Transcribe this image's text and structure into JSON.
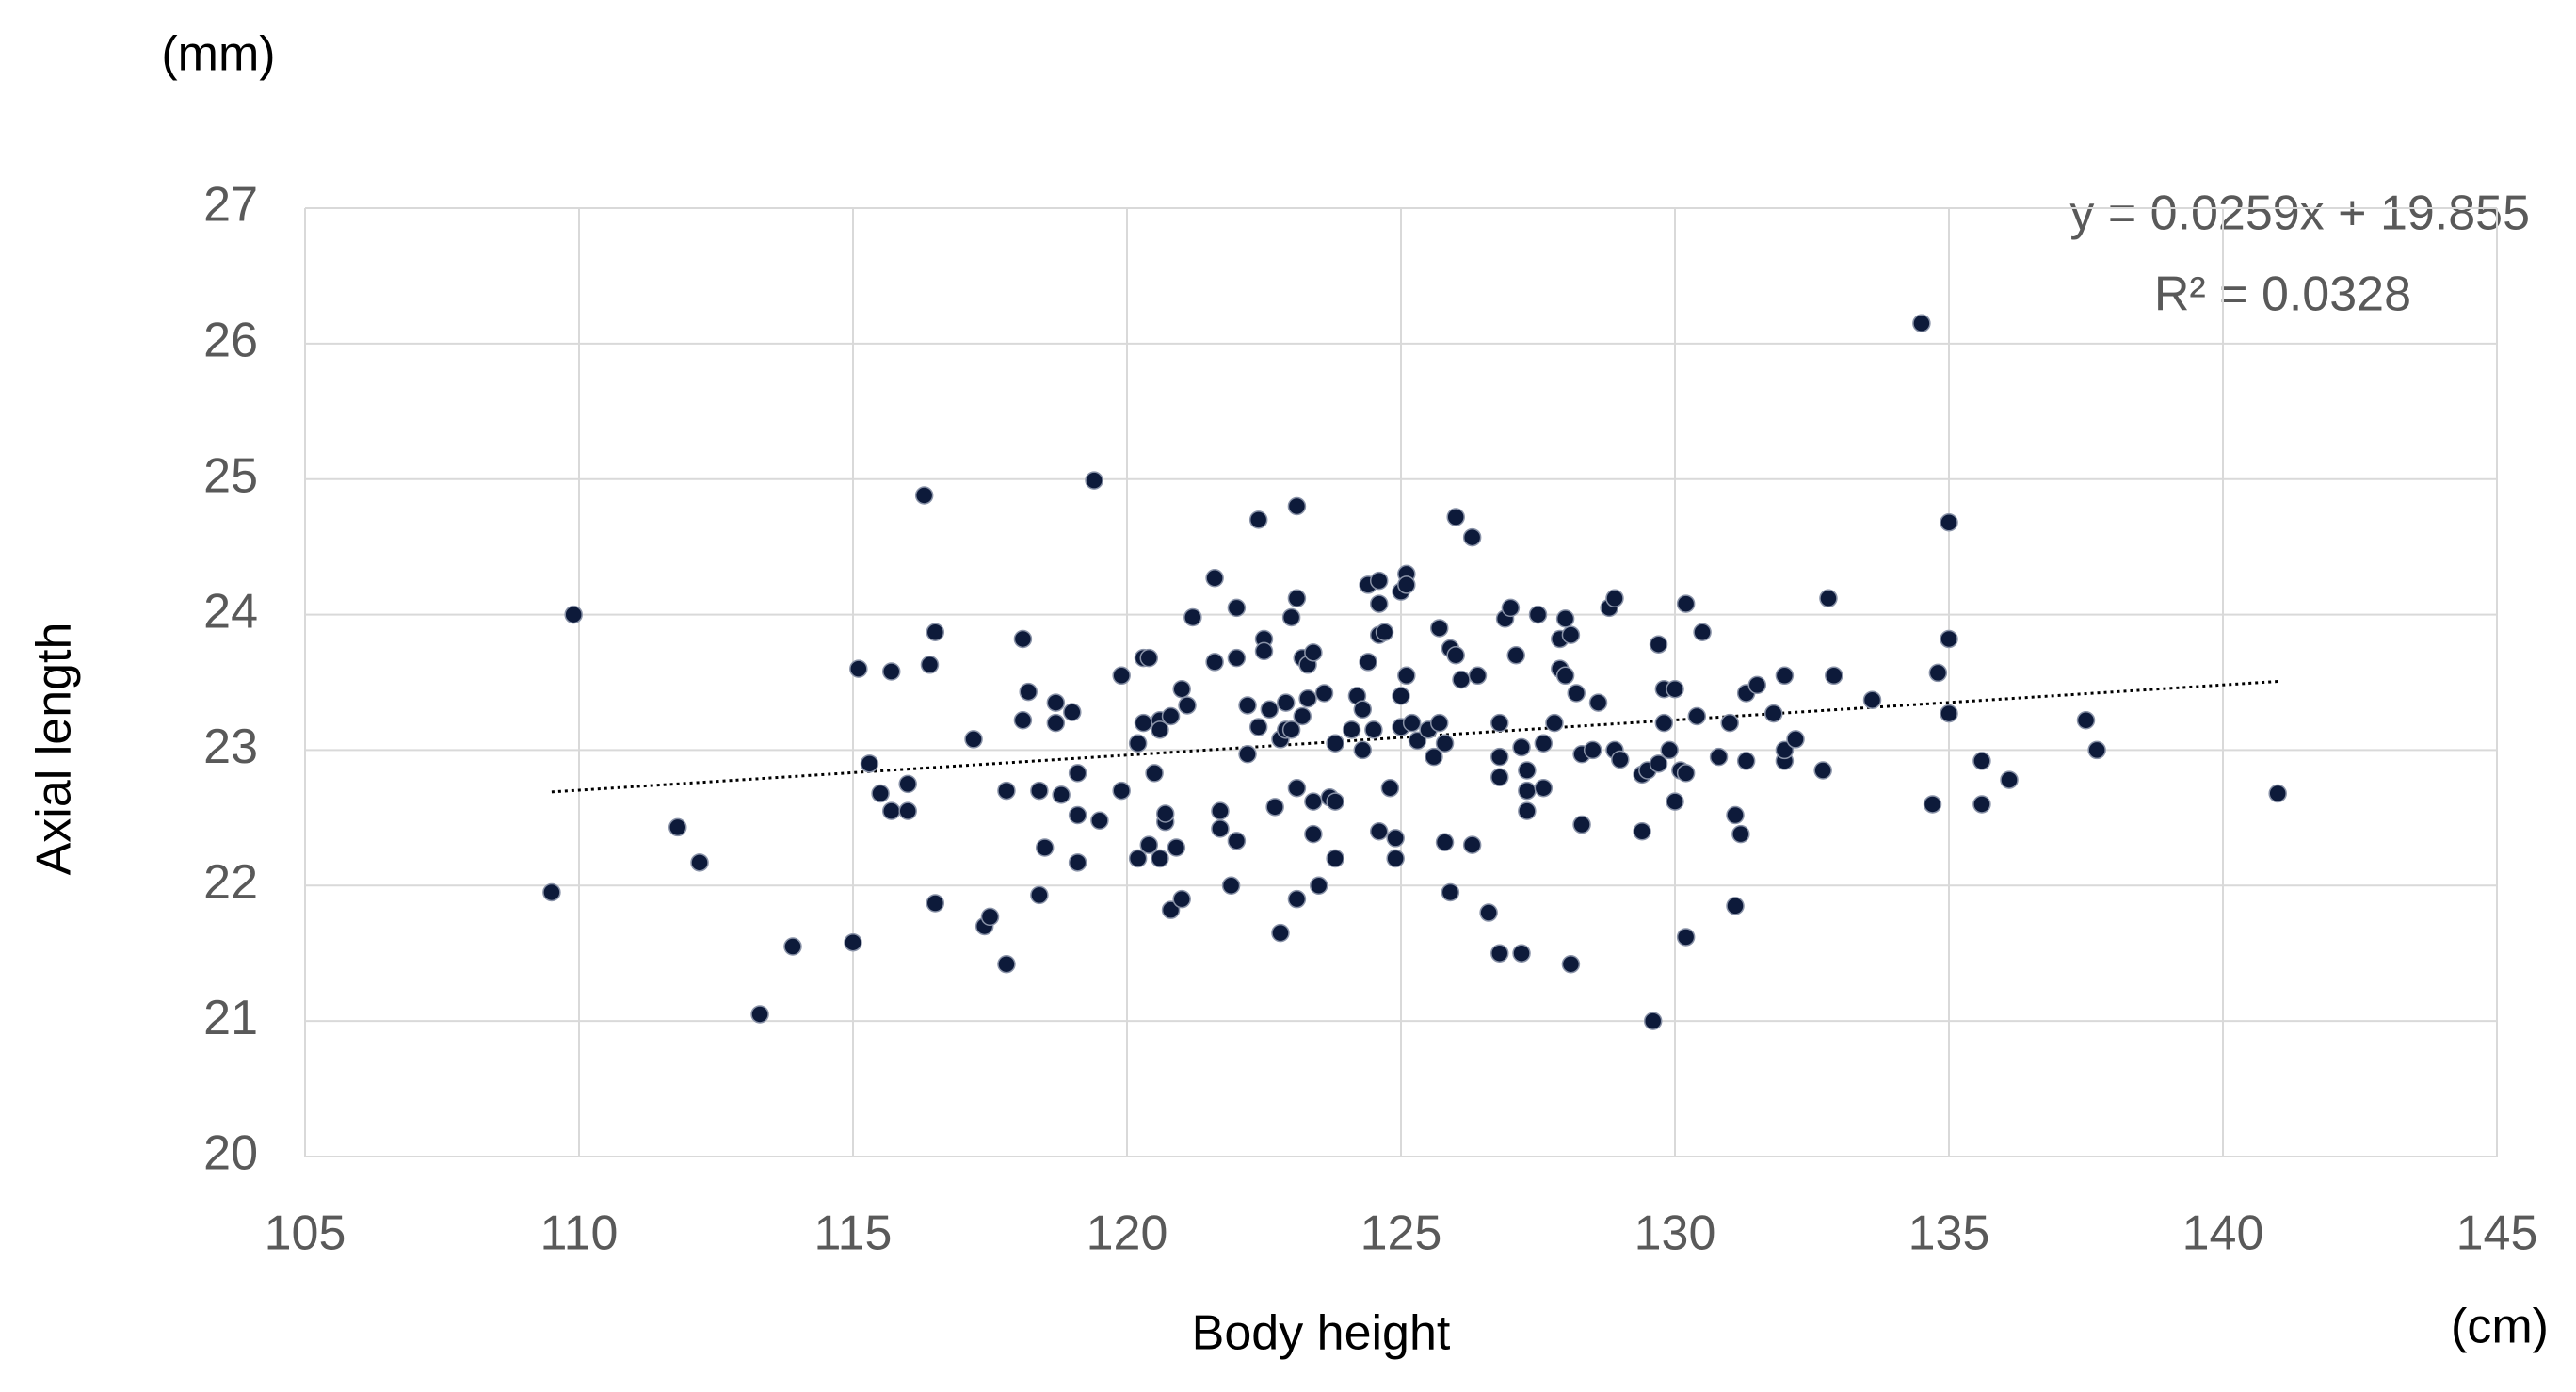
{
  "chart_data": {
    "type": "scatter",
    "x_label": "Body height",
    "y_label": "Axial length",
    "x_unit": "(cm)",
    "y_unit": "(mm)",
    "xlim": [
      105,
      145
    ],
    "xticks": [
      105,
      110,
      115,
      120,
      125,
      130,
      135,
      140,
      145
    ],
    "ylim": [
      20,
      27
    ],
    "yticks": [
      20,
      21,
      22,
      23,
      24,
      25,
      26,
      27
    ],
    "grid": true,
    "color": "#0d1a3a",
    "trendline": {
      "equation": "y = 0.0259x + 19.855",
      "r2": "R² = 0.0328",
      "slope": 0.0259,
      "intercept": 19.855,
      "xrange": [
        109.5,
        141
      ]
    },
    "x": [
      109.5,
      109.9,
      111.8,
      112.2,
      113.3,
      113.9,
      115.0,
      115.1,
      115.3,
      115.5,
      115.7,
      115.7,
      116.0,
      116.0,
      116.3,
      116.4,
      116.5,
      116.5,
      117.2,
      117.4,
      117.5,
      117.8,
      117.8,
      118.1,
      118.2,
      118.1,
      118.4,
      118.4,
      118.5,
      118.7,
      118.7,
      118.8,
      119.0,
      119.1,
      119.1,
      119.1,
      119.4,
      119.5,
      119.9,
      119.9,
      120.2,
      120.2,
      120.3,
      120.3,
      120.4,
      120.4,
      120.5,
      120.6,
      120.6,
      120.6,
      120.7,
      120.7,
      120.8,
      120.8,
      120.9,
      121.0,
      121.0,
      121.1,
      121.2,
      121.6,
      121.6,
      121.7,
      121.7,
      121.9,
      122.0,
      122.0,
      122.0,
      122.2,
      122.2,
      122.4,
      122.4,
      122.5,
      122.5,
      122.6,
      122.7,
      122.8,
      122.8,
      122.9,
      122.9,
      123.0,
      123.0,
      123.1,
      123.1,
      123.1,
      123.1,
      123.2,
      123.2,
      123.3,
      123.3,
      123.4,
      123.4,
      123.4,
      123.5,
      123.6,
      123.7,
      123.8,
      123.8,
      123.8,
      124.1,
      124.2,
      124.3,
      124.3,
      124.4,
      124.4,
      124.5,
      124.6,
      124.6,
      124.6,
      124.6,
      124.7,
      124.8,
      124.9,
      124.9,
      125.0,
      125.0,
      125.0,
      125.1,
      125.1,
      125.1,
      125.2,
      125.3,
      125.5,
      125.6,
      125.7,
      125.7,
      125.8,
      125.8,
      125.9,
      125.9,
      126.0,
      126.0,
      126.1,
      126.3,
      126.3,
      126.4,
      126.6,
      126.8,
      126.8,
      126.8,
      126.8,
      126.9,
      127.0,
      127.1,
      127.2,
      127.2,
      127.3,
      127.3,
      127.3,
      127.5,
      127.6,
      127.6,
      127.8,
      127.9,
      127.9,
      128.0,
      128.0,
      128.1,
      128.1,
      128.2,
      128.3,
      128.3,
      128.5,
      128.6,
      128.8,
      128.9,
      128.9,
      129.0,
      129.4,
      129.4,
      129.5,
      129.6,
      129.7,
      129.7,
      129.8,
      129.8,
      129.9,
      130.0,
      130.0,
      130.1,
      130.2,
      130.2,
      130.2,
      130.4,
      130.5,
      130.8,
      131.0,
      131.1,
      131.1,
      131.2,
      131.3,
      131.3,
      131.5,
      131.8,
      132.0,
      132.0,
      132.0,
      132.2,
      132.7,
      132.8,
      132.9,
      133.6,
      134.5,
      134.7,
      134.8,
      135.0,
      135.0,
      135.0,
      135.6,
      135.6,
      136.1,
      137.5,
      137.7,
      141.0
    ],
    "values": [
      21.95,
      24.0,
      22.43,
      22.17,
      21.05,
      21.55,
      21.58,
      23.6,
      22.9,
      22.68,
      22.55,
      23.58,
      22.55,
      22.75,
      24.88,
      23.63,
      23.87,
      21.87,
      23.08,
      21.7,
      21.77,
      21.42,
      22.7,
      23.82,
      23.43,
      23.22,
      21.93,
      22.7,
      22.28,
      23.35,
      23.2,
      22.67,
      23.28,
      22.52,
      22.17,
      22.83,
      24.99,
      22.48,
      23.55,
      22.7,
      23.05,
      22.2,
      23.2,
      23.68,
      23.68,
      22.3,
      22.83,
      23.22,
      23.15,
      22.2,
      22.47,
      22.53,
      23.25,
      21.82,
      22.28,
      23.45,
      21.9,
      23.33,
      23.98,
      24.27,
      23.65,
      22.42,
      22.55,
      22.0,
      24.05,
      23.68,
      22.33,
      23.33,
      22.97,
      24.7,
      23.17,
      23.82,
      23.73,
      23.3,
      22.58,
      23.08,
      21.65,
      23.35,
      23.15,
      23.98,
      23.15,
      24.8,
      24.12,
      22.72,
      21.9,
      23.25,
      23.68,
      23.63,
      23.38,
      23.72,
      22.38,
      22.62,
      22.0,
      23.42,
      22.65,
      23.05,
      22.2,
      22.62,
      23.15,
      23.4,
      23.0,
      23.3,
      24.22,
      23.65,
      23.15,
      24.25,
      24.08,
      23.85,
      22.4,
      23.87,
      22.72,
      22.2,
      22.35,
      23.4,
      23.17,
      24.17,
      24.3,
      24.22,
      23.55,
      23.2,
      23.07,
      23.15,
      22.95,
      23.2,
      23.9,
      22.32,
      23.05,
      21.95,
      23.75,
      24.72,
      23.7,
      23.52,
      24.57,
      22.3,
      23.55,
      21.8,
      21.5,
      23.2,
      22.95,
      22.8,
      23.97,
      24.05,
      23.7,
      21.5,
      23.02,
      22.85,
      22.55,
      22.7,
      24.0,
      22.72,
      23.05,
      23.2,
      23.6,
      23.82,
      23.55,
      23.97,
      23.85,
      21.42,
      23.42,
      22.97,
      22.45,
      23.0,
      23.35,
      24.05,
      24.12,
      23.0,
      22.93,
      22.82,
      22.4,
      22.85,
      21.0,
      23.78,
      22.9,
      23.45,
      23.2,
      23.0,
      23.45,
      22.62,
      22.85,
      24.08,
      22.83,
      21.62,
      23.25,
      23.87,
      22.95,
      23.2,
      21.85,
      22.52,
      22.38,
      23.42,
      22.92,
      23.48,
      23.27,
      22.92,
      23.0,
      23.55,
      23.08,
      22.85,
      24.12,
      23.55,
      23.37,
      26.15,
      22.6,
      23.57,
      24.68,
      23.82,
      23.27,
      22.92,
      22.6,
      22.78,
      23.22,
      23.0,
      22.68
    ]
  }
}
